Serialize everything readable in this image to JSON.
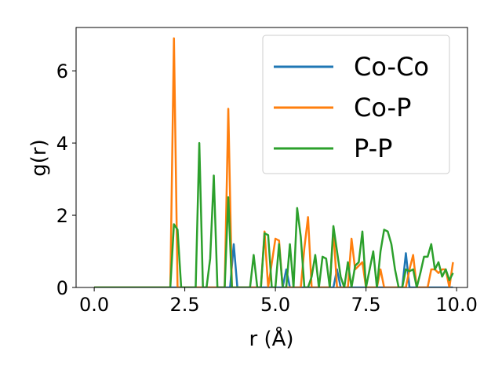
{
  "chart_data": {
    "type": "line",
    "xlabel": "r (Å)",
    "ylabel": "g(r)",
    "xlim": [
      -0.5,
      10.3
    ],
    "ylim": [
      0,
      7.2
    ],
    "xticks": [
      "0.0",
      "2.5",
      "5.0",
      "7.5",
      "10.0"
    ],
    "xtick_values": [
      0,
      2.5,
      5,
      7.5,
      10
    ],
    "yticks": [
      "0",
      "2",
      "4",
      "6"
    ],
    "ytick_values": [
      0,
      2,
      4,
      6
    ],
    "grid": false,
    "legend_position": "top-right",
    "series": [
      {
        "name": "Co-Co",
        "color": "#1f77b4",
        "points": [
          [
            0,
            0
          ],
          [
            3.6,
            0
          ],
          [
            3.75,
            0
          ],
          [
            3.85,
            1.2
          ],
          [
            3.95,
            0
          ],
          [
            5.2,
            0
          ],
          [
            5.3,
            0.5
          ],
          [
            5.4,
            0
          ],
          [
            6.6,
            0
          ],
          [
            6.7,
            0.5
          ],
          [
            6.8,
            0
          ],
          [
            8.5,
            0
          ],
          [
            8.6,
            0.95
          ],
          [
            8.7,
            0
          ],
          [
            9.9,
            0
          ]
        ]
      },
      {
        "name": "Co-P",
        "color": "#ff7f0e",
        "points": [
          [
            0,
            0
          ],
          [
            2.1,
            0
          ],
          [
            2.2,
            6.9
          ],
          [
            2.3,
            0
          ],
          [
            3.6,
            0
          ],
          [
            3.7,
            4.95
          ],
          [
            3.8,
            0
          ],
          [
            4.6,
            0
          ],
          [
            4.7,
            1.55
          ],
          [
            4.8,
            0
          ],
          [
            5.0,
            1.35
          ],
          [
            5.1,
            1.3
          ],
          [
            5.2,
            0
          ],
          [
            5.7,
            0
          ],
          [
            5.8,
            1.1
          ],
          [
            5.9,
            1.95
          ],
          [
            6.0,
            0
          ],
          [
            6.5,
            0
          ],
          [
            6.6,
            1.6
          ],
          [
            6.7,
            0
          ],
          [
            7.0,
            0
          ],
          [
            7.1,
            1.35
          ],
          [
            7.2,
            0.5
          ],
          [
            7.4,
            0.7
          ],
          [
            7.5,
            0
          ],
          [
            7.8,
            0
          ],
          [
            7.9,
            0.5
          ],
          [
            8.0,
            0
          ],
          [
            8.6,
            0
          ],
          [
            8.7,
            0.5
          ],
          [
            8.8,
            0.9
          ],
          [
            8.9,
            0
          ],
          [
            9.2,
            0
          ],
          [
            9.3,
            0.5
          ],
          [
            9.4,
            0.5
          ],
          [
            9.5,
            0.4
          ],
          [
            9.6,
            0.5
          ],
          [
            9.7,
            0.5
          ],
          [
            9.8,
            0
          ],
          [
            9.9,
            0.7
          ]
        ]
      },
      {
        "name": "P-P",
        "color": "#2ca02c",
        "points": [
          [
            0,
            0
          ],
          [
            2.1,
            0
          ],
          [
            2.2,
            1.75
          ],
          [
            2.3,
            1.6
          ],
          [
            2.4,
            0
          ],
          [
            2.8,
            0
          ],
          [
            2.9,
            4.0
          ],
          [
            3.0,
            0
          ],
          [
            3.1,
            0
          ],
          [
            3.2,
            0.8
          ],
          [
            3.3,
            3.1
          ],
          [
            3.4,
            0
          ],
          [
            3.6,
            0
          ],
          [
            3.7,
            2.5
          ],
          [
            3.8,
            0
          ],
          [
            4.3,
            0
          ],
          [
            4.4,
            0.9
          ],
          [
            4.5,
            0
          ],
          [
            4.6,
            0
          ],
          [
            4.7,
            1.5
          ],
          [
            4.8,
            1.45
          ],
          [
            4.9,
            0
          ],
          [
            5.0,
            0
          ],
          [
            5.1,
            1.2
          ],
          [
            5.2,
            0
          ],
          [
            5.3,
            0
          ],
          [
            5.4,
            1.2
          ],
          [
            5.5,
            0
          ],
          [
            5.6,
            2.2
          ],
          [
            5.7,
            1.4
          ],
          [
            5.8,
            0
          ],
          [
            5.9,
            0
          ],
          [
            6.0,
            0.3
          ],
          [
            6.1,
            0.9
          ],
          [
            6.2,
            0
          ],
          [
            6.3,
            0.85
          ],
          [
            6.4,
            0.8
          ],
          [
            6.5,
            0
          ],
          [
            6.6,
            1.7
          ],
          [
            6.7,
            1.0
          ],
          [
            6.8,
            0.3
          ],
          [
            6.9,
            0
          ],
          [
            7.0,
            0.7
          ],
          [
            7.1,
            0
          ],
          [
            7.2,
            0.6
          ],
          [
            7.3,
            0.7
          ],
          [
            7.4,
            1.55
          ],
          [
            7.5,
            0
          ],
          [
            7.6,
            0.5
          ],
          [
            7.7,
            1.0
          ],
          [
            7.8,
            0
          ],
          [
            7.9,
            1.0
          ],
          [
            8.0,
            1.6
          ],
          [
            8.1,
            1.55
          ],
          [
            8.2,
            1.2
          ],
          [
            8.3,
            0.5
          ],
          [
            8.4,
            0
          ],
          [
            8.5,
            0
          ],
          [
            8.6,
            0.5
          ],
          [
            8.7,
            0.45
          ],
          [
            8.8,
            0.5
          ],
          [
            8.9,
            0
          ],
          [
            9.0,
            0.4
          ],
          [
            9.1,
            0.85
          ],
          [
            9.2,
            0.85
          ],
          [
            9.3,
            1.2
          ],
          [
            9.4,
            0.5
          ],
          [
            9.5,
            0.7
          ],
          [
            9.6,
            0.3
          ],
          [
            9.7,
            0.5
          ],
          [
            9.8,
            0.2
          ],
          [
            9.9,
            0.4
          ]
        ]
      }
    ]
  }
}
